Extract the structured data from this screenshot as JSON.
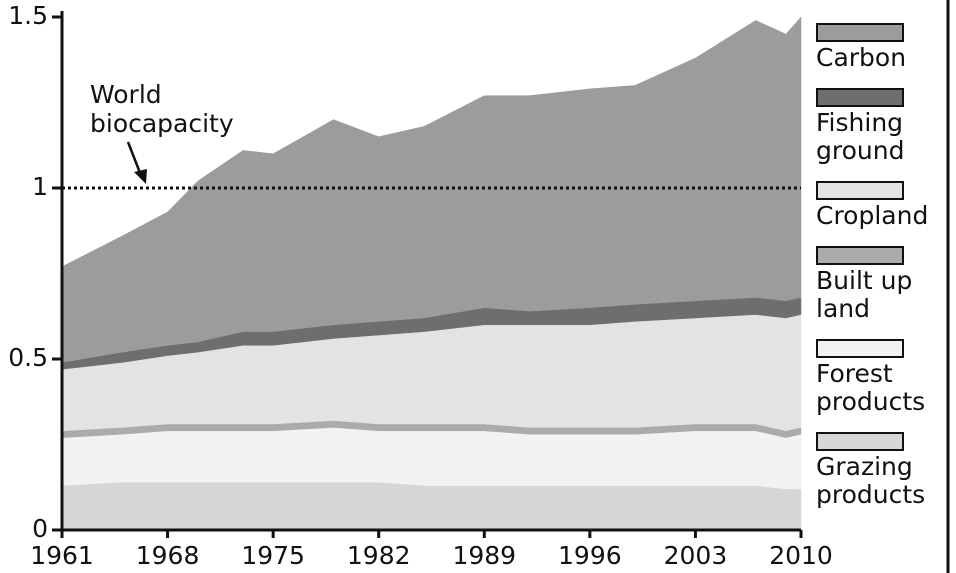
{
  "chart_data": {
    "type": "stacked_area",
    "x": [
      1961,
      1965,
      1968,
      1970,
      1973,
      1975,
      1979,
      1982,
      1985,
      1989,
      1992,
      1996,
      1999,
      2003,
      2007,
      2009,
      2010
    ],
    "series": [
      {
        "name": "Grazing products",
        "color": "#d6d6d6",
        "values": [
          0.13,
          0.14,
          0.14,
          0.14,
          0.14,
          0.14,
          0.14,
          0.14,
          0.13,
          0.13,
          0.13,
          0.13,
          0.13,
          0.13,
          0.13,
          0.12,
          0.12
        ]
      },
      {
        "name": "Forest products",
        "color": "#f2f2f2",
        "values": [
          0.14,
          0.14,
          0.15,
          0.15,
          0.15,
          0.15,
          0.16,
          0.15,
          0.16,
          0.16,
          0.15,
          0.15,
          0.15,
          0.16,
          0.16,
          0.15,
          0.16
        ]
      },
      {
        "name": "Built up land",
        "color": "#ababab",
        "values": [
          0.02,
          0.02,
          0.02,
          0.02,
          0.02,
          0.02,
          0.02,
          0.02,
          0.02,
          0.02,
          0.02,
          0.02,
          0.02,
          0.02,
          0.02,
          0.02,
          0.02
        ]
      },
      {
        "name": "Cropland",
        "color": "#e3e3e3",
        "values": [
          0.18,
          0.19,
          0.2,
          0.21,
          0.23,
          0.23,
          0.24,
          0.26,
          0.27,
          0.29,
          0.3,
          0.3,
          0.31,
          0.31,
          0.32,
          0.33,
          0.33
        ]
      },
      {
        "name": "Fishing ground",
        "color": "#6e6e6e",
        "values": [
          0.02,
          0.03,
          0.03,
          0.03,
          0.04,
          0.04,
          0.04,
          0.04,
          0.04,
          0.05,
          0.04,
          0.05,
          0.05,
          0.05,
          0.05,
          0.05,
          0.05
        ]
      },
      {
        "name": "Carbon",
        "color": "#9c9c9c",
        "values": [
          0.28,
          0.34,
          0.39,
          0.47,
          0.53,
          0.52,
          0.6,
          0.54,
          0.56,
          0.62,
          0.63,
          0.64,
          0.64,
          0.71,
          0.81,
          0.78,
          0.82
        ]
      }
    ],
    "xlim": [
      1961,
      2010
    ],
    "xticks": [
      1961,
      1968,
      1975,
      1982,
      1989,
      1996,
      2003,
      2010
    ],
    "ylim": [
      0,
      1.5
    ],
    "yticks": [
      0,
      0.5,
      1,
      1.5
    ],
    "reference_line": {
      "value": 1,
      "label": "World biocapacity"
    }
  }
}
